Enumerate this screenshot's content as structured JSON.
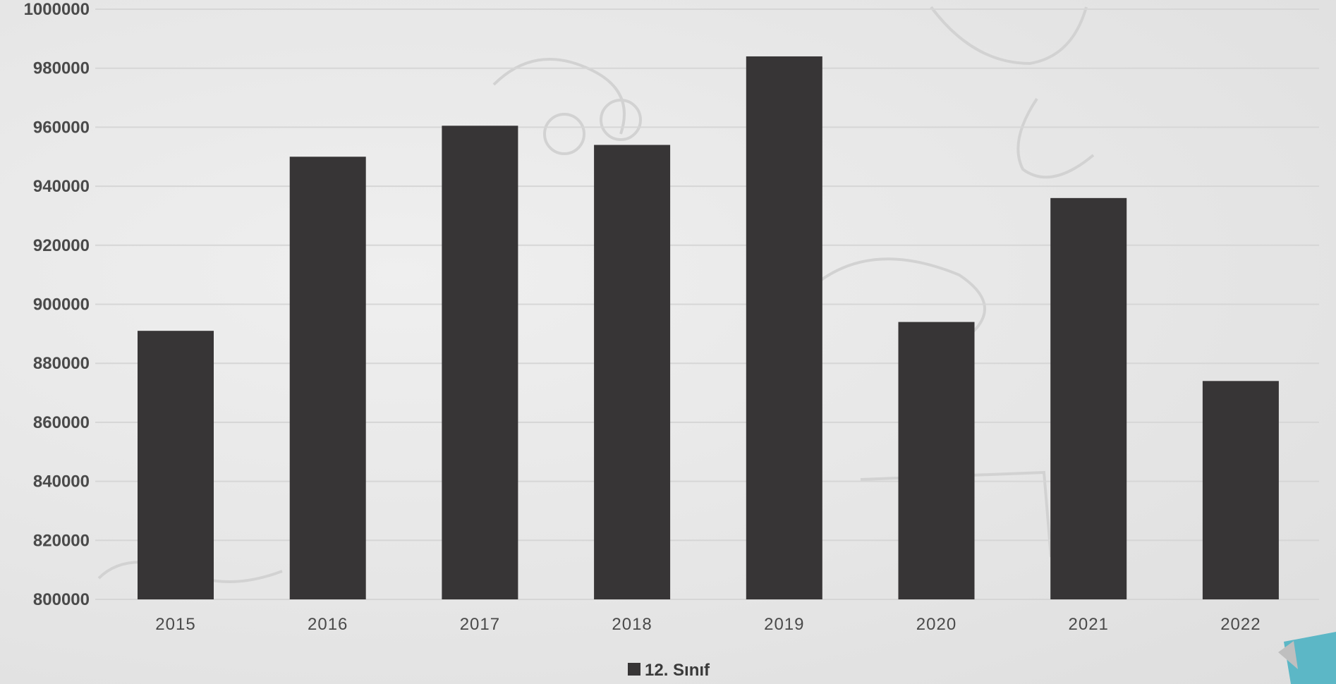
{
  "chart_data": {
    "type": "bar",
    "categories": [
      "2015",
      "2016",
      "2017",
      "2018",
      "2019",
      "2020",
      "2021",
      "2022"
    ],
    "series": [
      {
        "name": "12. Sınıf",
        "values": [
          891000,
          950000,
          960500,
          954000,
          984000,
          894000,
          936000,
          874000
        ]
      }
    ],
    "title": "",
    "xlabel": "",
    "ylabel": "",
    "ylim": [
      800000,
      1000000
    ],
    "yticks": [
      "800000",
      "820000",
      "840000",
      "860000",
      "880000",
      "900000",
      "920000",
      "940000",
      "960000",
      "980000",
      "1000000"
    ],
    "grid": true,
    "legend_position": "bottom",
    "colors": {
      "bar": "#373536",
      "grid": "#d6d6d6",
      "text": "#4a4a4a"
    }
  }
}
